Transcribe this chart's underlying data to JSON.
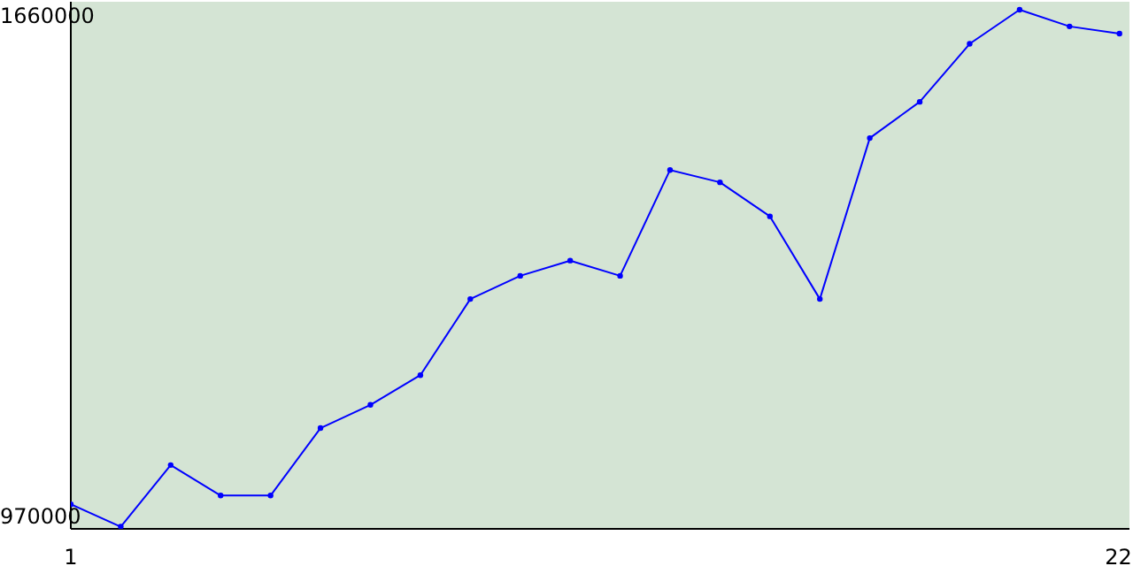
{
  "chart_data": {
    "type": "line",
    "x": [
      1,
      2,
      3,
      4,
      5,
      6,
      7,
      8,
      9,
      10,
      11,
      12,
      13,
      14,
      15,
      16,
      17,
      18,
      19,
      20,
      21,
      22
    ],
    "series": [
      {
        "color": "#0000ff",
        "values": [
          987000,
          956000,
          1041000,
          999000,
          999000,
          1092000,
          1124000,
          1165000,
          1270000,
          1302000,
          1323000,
          1302000,
          1448000,
          1431000,
          1384000,
          1270000,
          1492000,
          1542000,
          1622000,
          1669000,
          1646000,
          1636000
        ]
      }
    ],
    "xlim": [
      1,
      22.2
    ],
    "xticks": [
      1,
      22
    ],
    "ylim": [
      953000,
      1680000
    ],
    "yticks": [
      970000,
      1660000
    ],
    "grid": false,
    "legend": false,
    "marker": "circle",
    "line_style": "solid"
  }
}
